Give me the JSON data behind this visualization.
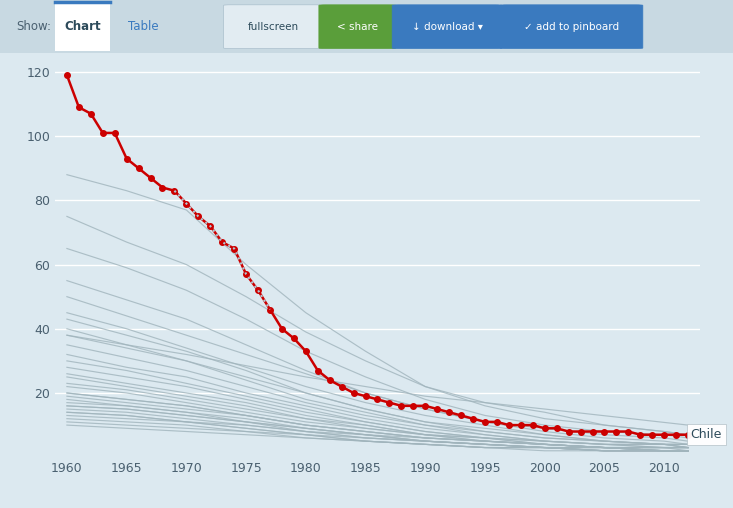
{
  "background_color": "#dce9f0",
  "header_color": "#c8d9e2",
  "plot_bg": "#dce9f0",
  "grid_color": "#ffffff",
  "chile_color": "#cc0000",
  "other_color": "#a0b4bc",
  "label_color": "#4a6070",
  "ylim": [
    0,
    125
  ],
  "xlim": [
    1959,
    2013
  ],
  "yticks": [
    20,
    40,
    60,
    80,
    100,
    120
  ],
  "xticks": [
    1960,
    1965,
    1970,
    1975,
    1980,
    1985,
    1990,
    1995,
    2000,
    2005,
    2010
  ],
  "chile_years": [
    1960,
    1961,
    1962,
    1963,
    1964,
    1965,
    1966,
    1967,
    1968,
    1969,
    1970,
    1971,
    1972,
    1973,
    1974,
    1975,
    1976,
    1977,
    1978,
    1979,
    1980,
    1981,
    1982,
    1983,
    1984,
    1985,
    1986,
    1987,
    1988,
    1989,
    1990,
    1991,
    1992,
    1993,
    1994,
    1995,
    1996,
    1997,
    1998,
    1999,
    2000,
    2001,
    2002,
    2003,
    2004,
    2005,
    2006,
    2007,
    2008,
    2009,
    2010,
    2011,
    2012
  ],
  "chile_values": [
    119,
    109,
    107,
    101,
    101,
    93,
    90,
    87,
    84,
    83,
    79,
    75,
    72,
    67,
    65,
    57,
    52,
    46,
    40,
    37,
    33,
    27,
    24,
    22,
    20,
    19,
    18,
    17,
    16,
    16,
    16,
    15,
    14,
    13,
    12,
    11,
    11,
    10,
    10,
    10,
    9,
    9,
    8,
    8,
    8,
    8,
    8,
    8,
    7,
    7,
    7,
    7,
    7
  ],
  "dotted_years": [
    1969,
    1970,
    1971,
    1972,
    1973,
    1974,
    1975,
    1976,
    1977
  ],
  "dotted_values": [
    83,
    79,
    75,
    72,
    67,
    65,
    57,
    52,
    46
  ],
  "other_countries": [
    {
      "years": [
        1960,
        1965,
        1970,
        1975,
        1980,
        1985,
        1990,
        1995,
        2000,
        2005,
        2010,
        2012
      ],
      "values": [
        88,
        83,
        77,
        60,
        45,
        33,
        22,
        17,
        14,
        10,
        8,
        7
      ]
    },
    {
      "years": [
        1960,
        1965,
        1970,
        1975,
        1980,
        1985,
        1990,
        1995,
        2000,
        2005,
        2010,
        2012
      ],
      "values": [
        50,
        44,
        38,
        32,
        26,
        20,
        15,
        11,
        8,
        6,
        5,
        4
      ]
    },
    {
      "years": [
        1960,
        1965,
        1970,
        1975,
        1980,
        1985,
        1990,
        1995,
        2000,
        2005,
        2010,
        2012
      ],
      "values": [
        45,
        40,
        34,
        28,
        22,
        17,
        13,
        10,
        7,
        5,
        4,
        4
      ]
    },
    {
      "years": [
        1960,
        1965,
        1970,
        1975,
        1980,
        1985,
        1990,
        1995,
        2000,
        2005,
        2010,
        2012
      ],
      "values": [
        40,
        35,
        30,
        25,
        20,
        15,
        11,
        8,
        6,
        5,
        4,
        3
      ]
    },
    {
      "years": [
        1960,
        1965,
        1970,
        1975,
        1980,
        1985,
        1990,
        1995,
        2000,
        2005,
        2010,
        2012
      ],
      "values": [
        35,
        31,
        27,
        22,
        17,
        13,
        10,
        7,
        5,
        4,
        4,
        3
      ]
    },
    {
      "years": [
        1960,
        1965,
        1970,
        1975,
        1980,
        1985,
        1990,
        1995,
        2000,
        2005,
        2010,
        2012
      ],
      "values": [
        30,
        27,
        23,
        19,
        15,
        11,
        8,
        6,
        5,
        4,
        3,
        3
      ]
    },
    {
      "years": [
        1960,
        1965,
        1970,
        1975,
        1980,
        1985,
        1990,
        1995,
        2000,
        2005,
        2010,
        2012
      ],
      "values": [
        26,
        23,
        20,
        17,
        13,
        10,
        7,
        6,
        4,
        3,
        3,
        3
      ]
    },
    {
      "years": [
        1960,
        1965,
        1970,
        1975,
        1980,
        1985,
        1990,
        1995,
        2000,
        2005,
        2010,
        2012
      ],
      "values": [
        23,
        21,
        18,
        15,
        12,
        9,
        7,
        5,
        4,
        3,
        3,
        3
      ]
    },
    {
      "years": [
        1960,
        1965,
        1970,
        1975,
        1980,
        1985,
        1990,
        1995,
        2000,
        2005,
        2010,
        2012
      ],
      "values": [
        20,
        18,
        16,
        13,
        10,
        8,
        6,
        5,
        4,
        3,
        3,
        2
      ]
    },
    {
      "years": [
        1960,
        1965,
        1970,
        1975,
        1980,
        1985,
        1990,
        1995,
        2000,
        2005,
        2010,
        2012
      ],
      "values": [
        18,
        16,
        14,
        12,
        9,
        7,
        6,
        5,
        4,
        3,
        2,
        2
      ]
    },
    {
      "years": [
        1960,
        1965,
        1970,
        1975,
        1980,
        1985,
        1990,
        1995,
        2000,
        2005,
        2010,
        2012
      ],
      "values": [
        16,
        15,
        13,
        11,
        8,
        7,
        5,
        4,
        3,
        3,
        2,
        2
      ]
    },
    {
      "years": [
        1960,
        1965,
        1970,
        1975,
        1980,
        1985,
        1990,
        1995,
        2000,
        2005,
        2010,
        2012
      ],
      "values": [
        15,
        14,
        12,
        10,
        8,
        6,
        5,
        4,
        3,
        2,
        2,
        2
      ]
    },
    {
      "years": [
        1960,
        1965,
        1970,
        1975,
        1980,
        1985,
        1990,
        1995,
        2000,
        2005,
        2010,
        2012
      ],
      "values": [
        14,
        13,
        11,
        9,
        7,
        6,
        5,
        4,
        3,
        2,
        2,
        2
      ]
    },
    {
      "years": [
        1960,
        1965,
        1970,
        1975,
        1980,
        1985,
        1990,
        1995,
        2000,
        2005,
        2010,
        2012
      ],
      "values": [
        13,
        12,
        11,
        9,
        7,
        5,
        4,
        3,
        3,
        2,
        2,
        2
      ]
    },
    {
      "years": [
        1960,
        1965,
        1970,
        1975,
        1980,
        1985,
        1990,
        1995,
        2000,
        2005,
        2010,
        2012
      ],
      "values": [
        12,
        11,
        10,
        8,
        7,
        5,
        4,
        3,
        3,
        2,
        2,
        2
      ]
    },
    {
      "years": [
        1960,
        1965,
        1970,
        1975,
        1980,
        1985,
        1990,
        1995,
        2000,
        2005,
        2010,
        2012
      ],
      "values": [
        28,
        25,
        22,
        18,
        14,
        11,
        8,
        6,
        5,
        4,
        3,
        3
      ]
    },
    {
      "years": [
        1960,
        1965,
        1970,
        1975,
        1980,
        1985,
        1990,
        1995,
        2000,
        2005,
        2010,
        2012
      ],
      "values": [
        32,
        28,
        25,
        20,
        16,
        12,
        9,
        7,
        5,
        4,
        4,
        3
      ]
    },
    {
      "years": [
        1960,
        1965,
        1970,
        1975,
        1980,
        1985,
        1990,
        1995,
        2000,
        2005,
        2010,
        2012
      ],
      "values": [
        38,
        34,
        30,
        24,
        18,
        14,
        10,
        8,
        6,
        5,
        4,
        4
      ]
    },
    {
      "years": [
        1960,
        1965,
        1970,
        1975,
        1980,
        1985,
        1990,
        1995,
        2000,
        2005,
        2010,
        2012
      ],
      "values": [
        22,
        20,
        17,
        14,
        11,
        9,
        7,
        5,
        4,
        3,
        3,
        3
      ]
    },
    {
      "years": [
        1960,
        1965,
        1970,
        1975,
        1980,
        1985,
        1990,
        1995,
        2000,
        2005,
        2010,
        2012
      ],
      "values": [
        19,
        17,
        15,
        13,
        10,
        8,
        6,
        5,
        4,
        3,
        2,
        2
      ]
    },
    {
      "years": [
        1960,
        1965,
        1970,
        1975,
        1980,
        1985,
        1990,
        1995,
        2000,
        2005,
        2010,
        2012
      ],
      "values": [
        17,
        16,
        14,
        11,
        9,
        7,
        5,
        4,
        3,
        3,
        2,
        2
      ]
    },
    {
      "years": [
        1960,
        1965,
        1970,
        1975,
        1980,
        1985,
        1990,
        1995,
        2000,
        2005,
        2010,
        2012
      ],
      "values": [
        25,
        22,
        19,
        16,
        12,
        10,
        7,
        6,
        4,
        3,
        3,
        3
      ]
    },
    {
      "years": [
        1960,
        1965,
        1970,
        1975,
        1980,
        1985,
        1990,
        1995,
        2000,
        2005,
        2010,
        2012
      ],
      "values": [
        43,
        38,
        33,
        27,
        20,
        15,
        11,
        9,
        7,
        5,
        4,
        4
      ]
    },
    {
      "years": [
        1960,
        1965,
        1970,
        1975,
        1980,
        1985,
        1990,
        1995,
        2000,
        2005,
        2010,
        2012
      ],
      "values": [
        55,
        49,
        43,
        35,
        27,
        20,
        15,
        11,
        9,
        7,
        6,
        5
      ]
    },
    {
      "years": [
        1960,
        1965,
        1970,
        1975,
        1980,
        1985,
        1990,
        1995,
        2000,
        2005,
        2010,
        2012
      ],
      "values": [
        65,
        59,
        52,
        43,
        33,
        25,
        18,
        13,
        10,
        8,
        7,
        6
      ]
    },
    {
      "years": [
        1960,
        1965,
        1970,
        1975,
        1980,
        1985,
        1990,
        1995,
        2000,
        2005,
        2010,
        2012
      ],
      "values": [
        75,
        67,
        60,
        50,
        39,
        30,
        22,
        16,
        12,
        10,
        8,
        7
      ]
    },
    {
      "years": [
        1960,
        1965,
        1970,
        1975,
        1980,
        1985,
        1990,
        1995,
        2000,
        2005,
        2010,
        2012
      ],
      "values": [
        20,
        18,
        16,
        13,
        10,
        8,
        6,
        5,
        4,
        3,
        2,
        2
      ]
    },
    {
      "years": [
        1960,
        1965,
        1970,
        1975,
        1980,
        1985,
        1990,
        1995,
        2000,
        2005,
        2010,
        2012
      ],
      "values": [
        16,
        15,
        13,
        11,
        9,
        7,
        5,
        4,
        3,
        3,
        2,
        2
      ]
    },
    {
      "years": [
        1960,
        1965,
        1970,
        1975,
        1980,
        1985,
        1990,
        1995,
        2000,
        2005,
        2010,
        2012
      ],
      "values": [
        14,
        13,
        11,
        10,
        8,
        6,
        5,
        4,
        3,
        2,
        2,
        2
      ]
    },
    {
      "years": [
        1960,
        1970,
        1980,
        1990,
        2000,
        2012
      ],
      "values": [
        38,
        32,
        25,
        19,
        15,
        10
      ]
    },
    {
      "years": [
        1960,
        1965,
        1970,
        1975,
        1980,
        1985,
        1990,
        1995,
        2000,
        2005,
        2010,
        2012
      ],
      "values": [
        11,
        10,
        9,
        8,
        6,
        5,
        4,
        3,
        3,
        2,
        2,
        2
      ]
    },
    {
      "years": [
        1960,
        1965,
        1970,
        1975,
        1980,
        1985,
        1990,
        1995,
        2000,
        2005,
        2010,
        2012
      ],
      "values": [
        10,
        9,
        8,
        7,
        6,
        5,
        4,
        3,
        2,
        2,
        2,
        2
      ]
    }
  ],
  "chile_label": "Chile",
  "label_fontsize": 9,
  "tick_fontsize": 9,
  "figsize": [
    7.33,
    5.08
  ],
  "dpi": 100
}
